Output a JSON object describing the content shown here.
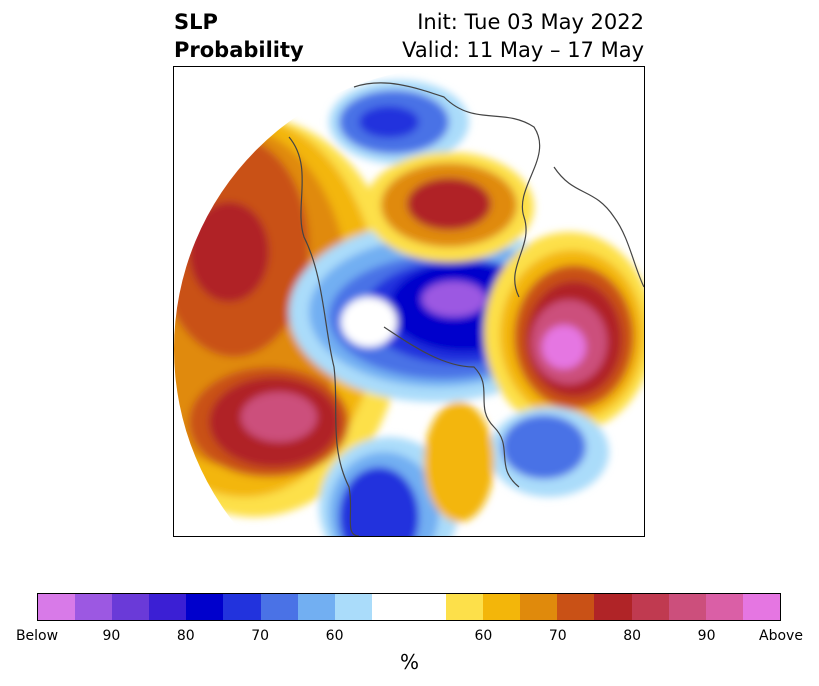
{
  "header": {
    "title_line1": "SLP",
    "title_line2": "Probability",
    "init_text": "Init: Tue 03 May 2022",
    "valid_text": "Valid: 11 May – 17 May"
  },
  "colorbar": {
    "colors": [
      "#d87ae8",
      "#9c58e2",
      "#6a3ad8",
      "#3b1fd4",
      "#0000cc",
      "#2233dd",
      "#4a72e6",
      "#72aff2",
      "#aadcfa",
      "#ffffff",
      "#ffffff",
      "#fde04a",
      "#f3b60a",
      "#e08a0c",
      "#c95116",
      "#b02427",
      "#c03a50",
      "#cc4f7c",
      "#da5fa6",
      "#e576e2"
    ],
    "tick_labels": [
      "Below",
      "90",
      "80",
      "70",
      "60",
      "",
      "60",
      "70",
      "80",
      "90",
      "Above"
    ],
    "unit_label": "%"
  }
}
